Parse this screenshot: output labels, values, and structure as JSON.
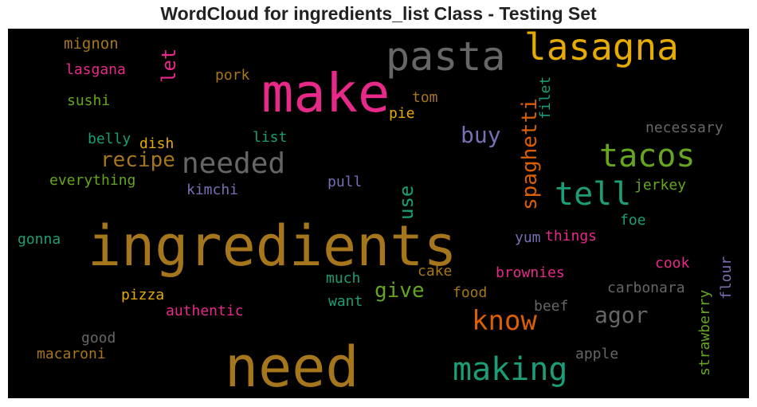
{
  "title": "WordCloud for ingredients_list Class - Testing Set",
  "palette": {
    "gold": "#b8831f",
    "pink": "#e7298a",
    "grey": "#666666",
    "amber": "#e6ab02",
    "green": "#1b9e77",
    "olive": "#66a61e",
    "orange": "#d95f02",
    "purple": "#7570b3",
    "brown": "#a6761d"
  },
  "words": [
    {
      "text": "ingredients",
      "color": "#a6761d"
    },
    {
      "text": "need",
      "color": "#a6761d"
    },
    {
      "text": "make",
      "color": "#e7298a"
    },
    {
      "text": "pasta",
      "color": "#666666"
    },
    {
      "text": "lasagna",
      "color": "#e6ab02"
    },
    {
      "text": "making",
      "color": "#1b9e77"
    },
    {
      "text": "tacos",
      "color": "#66a61e"
    },
    {
      "text": "tell",
      "color": "#1b9e77"
    },
    {
      "text": "needed",
      "color": "#666666"
    },
    {
      "text": "know",
      "color": "#d95f02"
    },
    {
      "text": "recipe",
      "color": "#a6761d"
    },
    {
      "text": "spaghetti",
      "color": "#d95f02"
    },
    {
      "text": "agor",
      "color": "#666666"
    },
    {
      "text": "give",
      "color": "#66a61e"
    },
    {
      "text": "buy",
      "color": "#7570b3"
    },
    {
      "text": "use",
      "color": "#1b9e77"
    },
    {
      "text": "let",
      "color": "#e7298a"
    },
    {
      "text": "mignon",
      "color": "#a6761d"
    },
    {
      "text": "lasgana",
      "color": "#e7298a"
    },
    {
      "text": "sushi",
      "color": "#66a61e"
    },
    {
      "text": "pork",
      "color": "#a6761d"
    },
    {
      "text": "tom",
      "color": "#a6761d"
    },
    {
      "text": "pie",
      "color": "#e6ab02"
    },
    {
      "text": "filet",
      "color": "#1b9e77"
    },
    {
      "text": "belly",
      "color": "#1b9e77"
    },
    {
      "text": "dish",
      "color": "#e6ab02"
    },
    {
      "text": "list",
      "color": "#1b9e77"
    },
    {
      "text": "necessary",
      "color": "#666666"
    },
    {
      "text": "everything",
      "color": "#66a61e"
    },
    {
      "text": "kimchi",
      "color": "#7570b3"
    },
    {
      "text": "pull",
      "color": "#7570b3"
    },
    {
      "text": "jerkey",
      "color": "#66a61e"
    },
    {
      "text": "gonna",
      "color": "#1b9e77"
    },
    {
      "text": "foe",
      "color": "#1b9e77"
    },
    {
      "text": "yum",
      "color": "#7570b3"
    },
    {
      "text": "things",
      "color": "#e7298a"
    },
    {
      "text": "cook",
      "color": "#e7298a"
    },
    {
      "text": "flour",
      "color": "#7570b3"
    },
    {
      "text": "cake",
      "color": "#a6761d"
    },
    {
      "text": "brownies",
      "color": "#e7298a"
    },
    {
      "text": "much",
      "color": "#1b9e77"
    },
    {
      "text": "carbonara",
      "color": "#666666"
    },
    {
      "text": "pizza",
      "color": "#e6ab02"
    },
    {
      "text": "food",
      "color": "#a6761d"
    },
    {
      "text": "want",
      "color": "#1b9e77"
    },
    {
      "text": "authentic",
      "color": "#e7298a"
    },
    {
      "text": "beef",
      "color": "#666666"
    },
    {
      "text": "strawberry",
      "color": "#66a61e"
    },
    {
      "text": "good",
      "color": "#666666"
    },
    {
      "text": "apple",
      "color": "#666666"
    },
    {
      "text": "macaroni",
      "color": "#a6761d"
    }
  ]
}
